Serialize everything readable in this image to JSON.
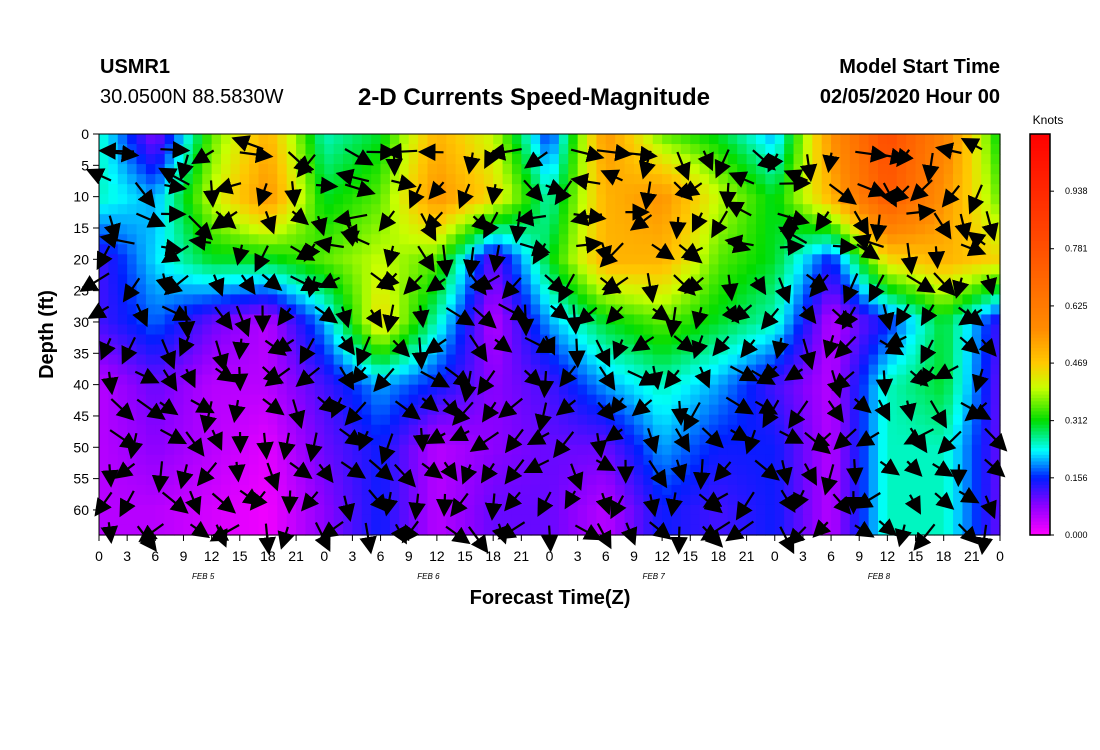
{
  "header": {
    "station": "USMR1",
    "coordinates": "30.0500N 88.5830W",
    "title": "2-D Currents Speed-Magnitude",
    "model_start_label": "Model Start Time",
    "model_start_value": "02/05/2020 Hour 00"
  },
  "chart_data": {
    "type": "heatmap",
    "title": "2-D Currents Speed-Magnitude",
    "xlabel": "Forecast Time(Z)",
    "ylabel": "Depth (ft)",
    "x_tick_labels": [
      "0",
      "3",
      "6",
      "9",
      "12",
      "15",
      "18",
      "21",
      "0",
      "3",
      "6",
      "9",
      "12",
      "15",
      "18",
      "21",
      "0",
      "3",
      "6",
      "9",
      "12",
      "15",
      "18",
      "21",
      "0",
      "3",
      "6",
      "9",
      "12",
      "15",
      "18",
      "21",
      "0"
    ],
    "date_labels": [
      "FEB 5",
      "FEB 6",
      "FEB 7",
      "FEB 8"
    ],
    "y_tick_labels": [
      "0",
      "5",
      "10",
      "15",
      "20",
      "25",
      "30",
      "35",
      "40",
      "45",
      "50",
      "55",
      "60"
    ],
    "ylim": [
      0,
      64
    ],
    "colorbar": {
      "unit": "Knots",
      "ticks": [
        "0.000",
        "0.156",
        "0.312",
        "0.469",
        "0.625",
        "0.781",
        "0.938"
      ],
      "range": [
        0.0,
        1.094
      ]
    },
    "speed_knots_grid_sampled": {
      "depth_rows_ft": [
        0,
        10,
        20,
        30,
        40,
        50,
        60
      ],
      "hour_columns": [
        0,
        6,
        12,
        18,
        24,
        30,
        36,
        42,
        48,
        54,
        60,
        66,
        72,
        78,
        84,
        90,
        96
      ],
      "values": [
        [
          0.25,
          0.08,
          0.35,
          0.5,
          0.25,
          0.3,
          0.5,
          0.4,
          0.15,
          0.55,
          0.35,
          0.3,
          0.2,
          0.55,
          0.8,
          0.6,
          0.3
        ],
        [
          0.25,
          0.2,
          0.4,
          0.55,
          0.3,
          0.35,
          0.55,
          0.45,
          0.25,
          0.5,
          0.55,
          0.4,
          0.3,
          0.5,
          0.75,
          0.55,
          0.35
        ],
        [
          0.12,
          0.22,
          0.3,
          0.3,
          0.35,
          0.4,
          0.35,
          0.1,
          0.3,
          0.5,
          0.5,
          0.35,
          0.3,
          0.15,
          0.45,
          0.5,
          0.45
        ],
        [
          0.12,
          0.18,
          0.1,
          0.05,
          0.2,
          0.45,
          0.25,
          0.05,
          0.2,
          0.3,
          0.35,
          0.3,
          0.25,
          0.05,
          0.15,
          0.3,
          0.12
        ],
        [
          0.05,
          0.1,
          0.05,
          0.05,
          0.12,
          0.2,
          0.15,
          0.08,
          0.12,
          0.2,
          0.25,
          0.2,
          0.12,
          0.05,
          0.25,
          0.3,
          0.1
        ],
        [
          0.05,
          0.08,
          0.05,
          0.02,
          0.1,
          0.15,
          0.05,
          0.08,
          0.1,
          0.1,
          0.2,
          0.15,
          0.15,
          0.05,
          0.25,
          0.25,
          0.1
        ],
        [
          0.05,
          0.05,
          0.03,
          0.01,
          0.08,
          0.15,
          0.05,
          0.1,
          0.1,
          0.05,
          0.15,
          0.12,
          0.15,
          0.05,
          0.25,
          0.25,
          0.1
        ]
      ]
    },
    "vectors_note_only": false
  }
}
